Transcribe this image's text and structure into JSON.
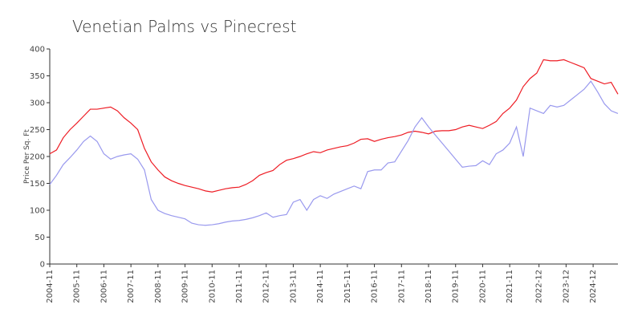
{
  "chart_data": {
    "type": "line",
    "title": "Venetian Palms vs Pinecrest",
    "y_label": "Price Per Sq. Ft",
    "x": [
      "2004-11",
      "2005-02",
      "2005-05",
      "2005-08",
      "2005-11",
      "2006-02",
      "2006-05",
      "2006-08",
      "2006-11",
      "2007-02",
      "2007-05",
      "2007-08",
      "2007-11",
      "2008-02",
      "2008-05",
      "2008-08",
      "2008-11",
      "2009-02",
      "2009-05",
      "2009-08",
      "2009-11",
      "2010-02",
      "2010-05",
      "2010-08",
      "2010-11",
      "2011-02",
      "2011-05",
      "2011-08",
      "2011-11",
      "2012-02",
      "2012-05",
      "2012-08",
      "2012-11",
      "2013-02",
      "2013-05",
      "2013-08",
      "2013-11",
      "2014-02",
      "2014-05",
      "2014-08",
      "2014-11",
      "2015-02",
      "2015-05",
      "2015-08",
      "2015-11",
      "2016-02",
      "2016-05",
      "2016-08",
      "2016-11",
      "2017-02",
      "2017-05",
      "2017-08",
      "2017-11",
      "2018-02",
      "2018-05",
      "2018-08",
      "2018-11",
      "2019-02",
      "2019-05",
      "2019-08",
      "2019-11",
      "2020-02",
      "2020-05",
      "2020-08",
      "2020-11",
      "2021-02",
      "2021-05",
      "2021-08",
      "2021-11",
      "2022-02",
      "2022-05",
      "2022-08",
      "2022-11",
      "2023-02",
      "2023-05",
      "2023-08",
      "2023-11",
      "2024-02",
      "2024-05",
      "2024-08",
      "2024-11",
      "2025-02",
      "2025-05",
      "2025-08",
      "2025-11"
    ],
    "series": [
      {
        "color": "#ee1c24",
        "values": [
          205,
          212,
          235,
          250,
          262,
          275,
          288,
          288,
          290,
          292,
          285,
          272,
          262,
          250,
          215,
          190,
          175,
          162,
          155,
          150,
          146,
          143,
          140,
          136,
          134,
          137,
          140,
          142,
          143,
          148,
          155,
          165,
          170,
          174,
          185,
          193,
          196,
          200,
          205,
          209,
          207,
          212,
          215,
          218,
          220,
          225,
          232,
          233,
          228,
          232,
          235,
          237,
          240,
          245,
          247,
          245,
          242,
          247,
          248,
          248,
          250,
          255,
          258,
          255,
          252,
          258,
          265,
          280,
          290,
          305,
          330,
          345,
          355,
          380,
          378,
          378,
          380,
          375,
          370,
          365,
          345,
          340,
          335,
          338,
          316
        ]
      },
      {
        "color": "#9999ee",
        "values": [
          148,
          165,
          185,
          198,
          212,
          228,
          238,
          228,
          205,
          195,
          200,
          203,
          205,
          195,
          175,
          120,
          100,
          94,
          90,
          87,
          84,
          76,
          73,
          72,
          73,
          75,
          78,
          80,
          81,
          83,
          86,
          90,
          95,
          87,
          90,
          92,
          115,
          120,
          100,
          120,
          127,
          122,
          130,
          135,
          140,
          145,
          140,
          172,
          175,
          175,
          188,
          190,
          210,
          230,
          255,
          272,
          255,
          240,
          225,
          210,
          195,
          180,
          182,
          183,
          192,
          185,
          205,
          212,
          225,
          255,
          200,
          290,
          285,
          280,
          295,
          292,
          295,
          305,
          315,
          325,
          340,
          320,
          298,
          285,
          280
        ]
      }
    ],
    "xlim": [
      "2004-11",
      "2025-11"
    ],
    "xticks": [
      "2004-11",
      "2005-11",
      "2006-11",
      "2007-11",
      "2008-11",
      "2009-11",
      "2010-11",
      "2011-11",
      "2012-11",
      "2013-11",
      "2014-11",
      "2015-11",
      "2016-11",
      "2017-11",
      "2018-11",
      "2019-11",
      "2020-11",
      "2021-11",
      "2022-12",
      "2023-12",
      "2024-12"
    ],
    "ylim": [
      0,
      400
    ],
    "yticks": [
      0,
      50,
      100,
      150,
      200,
      250,
      300,
      350,
      400
    ],
    "grid": false
  }
}
